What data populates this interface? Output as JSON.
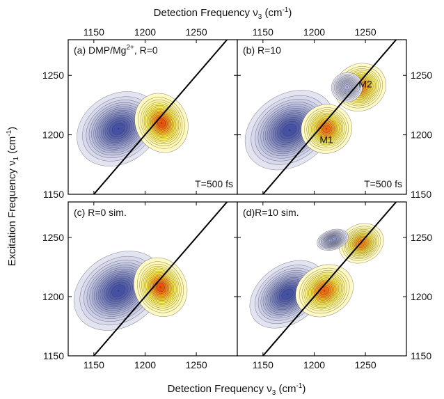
{
  "chart_data": {
    "type": "heatmap",
    "x_axis_title": "Detection Frequency ν",
    "x_axis_subscript": "3",
    "x_axis_unit": "(cm",
    "x_axis_unit_sup": "-1",
    "x_axis_unit_close": ")",
    "y_axis_title": "Excitation Frequency ν",
    "y_axis_subscript": "1",
    "y_axis_unit": "(cm",
    "y_axis_unit_sup": "-1",
    "y_axis_unit_close": ")",
    "xlim": [
      1125,
      1290
    ],
    "ylim": [
      1150,
      1280
    ],
    "x_ticks": [
      "1150",
      "1200",
      "1250"
    ],
    "y_ticks": [
      "1150",
      "1200",
      "1250"
    ],
    "colors": {
      "negative": "#3d4a9c",
      "positive": "#d91f00",
      "mid": "#ffff9c"
    },
    "panels": [
      {
        "id": "a",
        "label": "(a) DMP/Mg",
        "label_sup": "2+",
        "label_suffix": ", R=0",
        "annotation": "T=500 fs",
        "peaks": [
          {
            "x": 1174,
            "y": 1205,
            "amp": -1.0,
            "sx": 26,
            "sy": 34,
            "corr": 0.7
          },
          {
            "x": 1216,
            "y": 1210,
            "amp": 0.95,
            "sx": 16,
            "sy": 28,
            "corr": 0.55
          }
        ],
        "peak_labels": []
      },
      {
        "id": "b",
        "label": "(b) R=10",
        "label_sup": "",
        "label_suffix": "",
        "annotation": "T=500 fs",
        "peaks": [
          {
            "x": 1176,
            "y": 1204,
            "amp": -1.0,
            "sx": 28,
            "sy": 36,
            "corr": 0.75
          },
          {
            "x": 1212,
            "y": 1205,
            "amp": 0.9,
            "sx": 16,
            "sy": 22,
            "corr": 0.5
          },
          {
            "x": 1245,
            "y": 1240,
            "amp": 0.85,
            "sx": 16,
            "sy": 22,
            "corr": 0.6
          },
          {
            "x": 1232,
            "y": 1240,
            "amp": -0.35,
            "sx": 12,
            "sy": 14,
            "corr": 0.3
          }
        ],
        "peak_labels": [
          {
            "text": "M1",
            "x": 1212,
            "y": 1193
          },
          {
            "text": "M2",
            "x": 1250,
            "y": 1240
          }
        ]
      },
      {
        "id": "c",
        "label": "(c) R=0 sim.",
        "label_sup": "",
        "label_suffix": "",
        "annotation": "",
        "peaks": [
          {
            "x": 1174,
            "y": 1205,
            "amp": -1.0,
            "sx": 28,
            "sy": 36,
            "corr": 0.72
          },
          {
            "x": 1215,
            "y": 1208,
            "amp": 0.95,
            "sx": 16,
            "sy": 28,
            "corr": 0.55
          }
        ],
        "peak_labels": []
      },
      {
        "id": "d",
        "label": "(d)R=10 sim.",
        "label_sup": "",
        "label_suffix": "",
        "annotation": "",
        "peaks": [
          {
            "x": 1174,
            "y": 1202,
            "amp": -1.0,
            "sx": 24,
            "sy": 30,
            "corr": 0.8
          },
          {
            "x": 1210,
            "y": 1205,
            "amp": 0.9,
            "sx": 18,
            "sy": 24,
            "corr": 0.65
          },
          {
            "x": 1246,
            "y": 1245,
            "amp": 0.85,
            "sx": 14,
            "sy": 18,
            "corr": 0.6
          },
          {
            "x": 1218,
            "y": 1248,
            "amp": -0.55,
            "sx": 12,
            "sy": 10,
            "corr": 0.4
          }
        ],
        "peak_labels": []
      }
    ]
  }
}
